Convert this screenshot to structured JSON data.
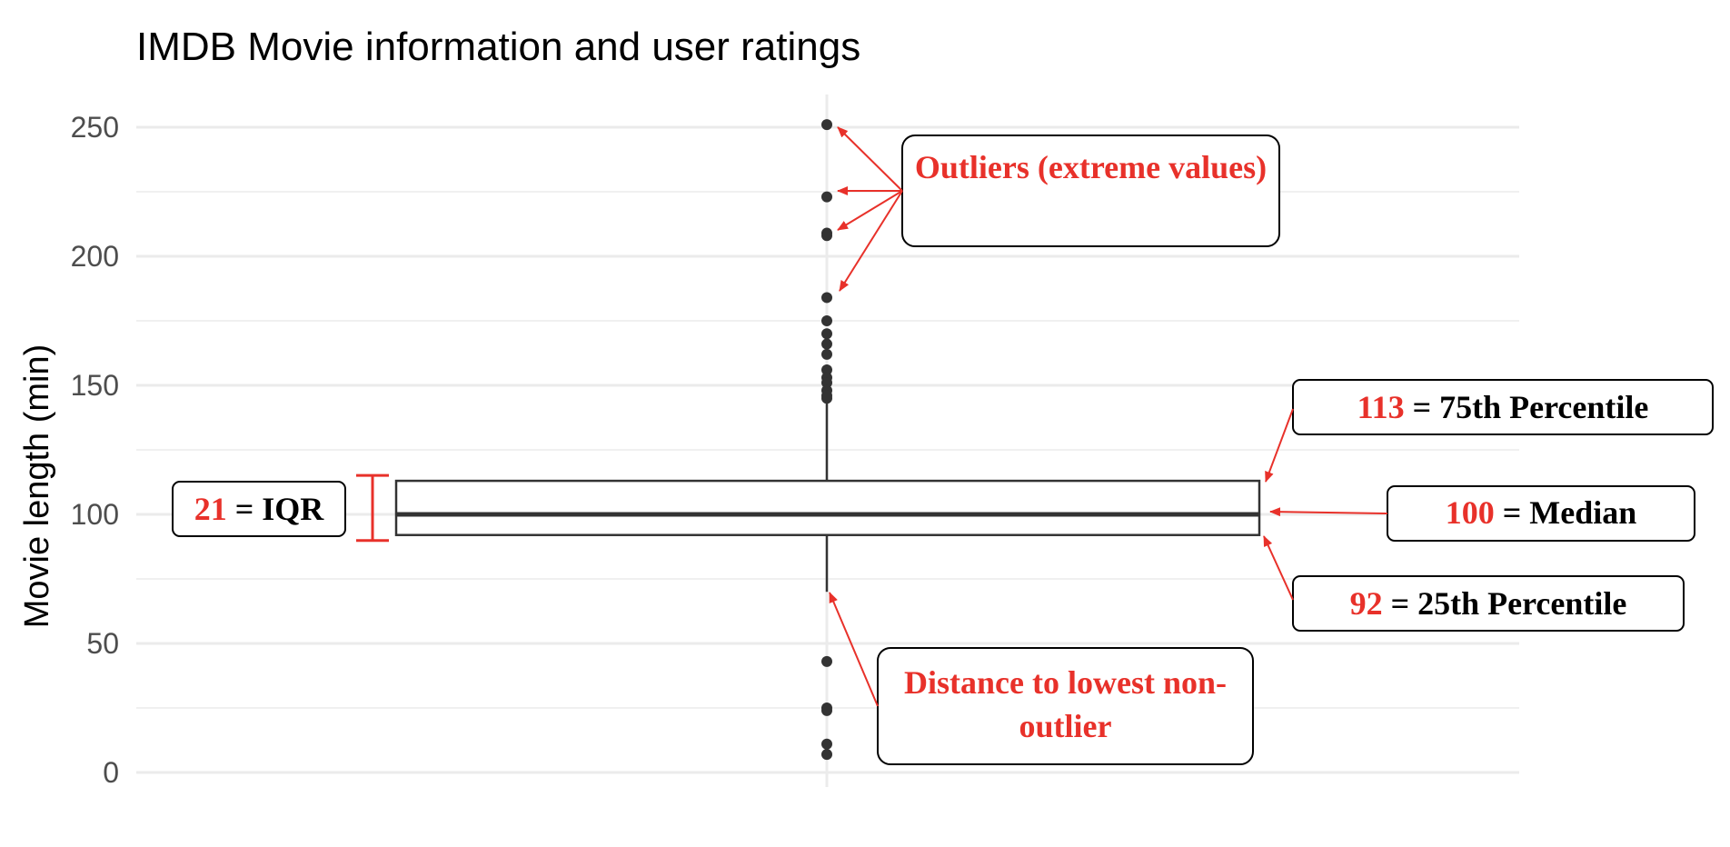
{
  "chart_data": {
    "type": "box",
    "title": "IMDB Movie information and user ratings",
    "xlabel": "",
    "ylabel": "Movie length (min)",
    "ylim": [
      0,
      250
    ],
    "yticks": [
      0,
      50,
      100,
      150,
      200,
      250
    ],
    "grid": true,
    "box": {
      "q1": 92,
      "median": 100,
      "q3": 113,
      "whisker_low": 70,
      "whisker_high": 144,
      "outliers_high": [
        251,
        223,
        209,
        208,
        184,
        175,
        170,
        166,
        162,
        156,
        153,
        151,
        148,
        146,
        145
      ],
      "outliers_low": [
        43,
        25,
        24,
        11,
        7
      ]
    },
    "annotations": {
      "outliers": {
        "text": "Outliers (extreme values)"
      },
      "q3": {
        "value": "113",
        "text": " = 75th Percentile"
      },
      "median": {
        "value": "100",
        "text": " = Median"
      },
      "q1": {
        "value": "92",
        "text": " = 25th Percentile"
      },
      "iqr": {
        "value": "21",
        "text": " = IQR"
      },
      "lowest": {
        "text": "Distance to lowest non-outlier"
      }
    },
    "colors": {
      "annotation": "#e8312a",
      "box": "#333333",
      "grid": "#ebebeb",
      "axis_text": "#4d4d4d"
    }
  }
}
